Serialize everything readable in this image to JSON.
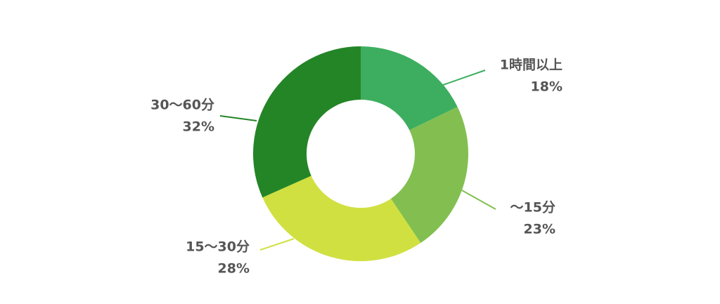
{
  "chart_data": {
    "type": "donut",
    "categories": [
      "1時間以上",
      "〜15分",
      "15〜30分",
      "30〜60分"
    ],
    "values": [
      18,
      23,
      28,
      32
    ],
    "value_labels": [
      "18%",
      "23%",
      "28%",
      "32%"
    ],
    "colors": [
      "#3dae5f",
      "#82bf50",
      "#d0e040",
      "#248527"
    ]
  }
}
